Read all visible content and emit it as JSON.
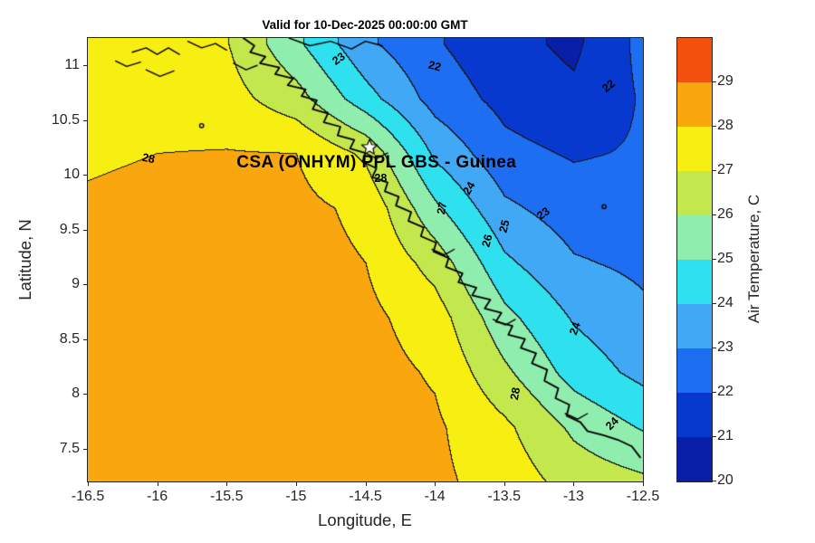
{
  "title": "Valid for 10-Dec-2025 00:00:00 GMT",
  "annotation": {
    "text": "CSA (ONHYM) PPL GBS  - Guinea",
    "lon": -14.42,
    "lat": 10.11
  },
  "axes": {
    "xlabel": "Longitude, E",
    "ylabel": "Latitude, N",
    "xlim": [
      -16.5,
      -12.5
    ],
    "ylim": [
      7.2,
      11.25
    ],
    "x_ticks": [
      -16.5,
      -16,
      -15.5,
      -15,
      -14.5,
      -14,
      -13.5,
      -13,
      -12.5
    ],
    "y_ticks": [
      7.5,
      8,
      8.5,
      9,
      9.5,
      10,
      10.5,
      11
    ]
  },
  "colorbar": {
    "label": "Air Temperature, C",
    "range": [
      20,
      30
    ],
    "ticks": [
      20,
      21,
      22,
      23,
      24,
      25,
      26,
      27,
      28,
      29
    ],
    "band_colors": [
      "#0a1fa8",
      "#0839cf",
      "#1e6ef2",
      "#41a8f5",
      "#2fe0ef",
      "#8fedae",
      "#c3e84e",
      "#f8ef12",
      "#f9a60f",
      "#f3500e"
    ]
  },
  "chart_data": {
    "type": "heatmap",
    "style": "filled-contour",
    "variable": "Air Temperature, C",
    "units": "degC",
    "contour_interval": 1,
    "grid": {
      "lon": [
        -16.5,
        -16,
        -15.5,
        -15,
        -14.5,
        -14,
        -13.5,
        -13,
        -12.5
      ],
      "lat": [
        7.2,
        7.7,
        8.2,
        8.7,
        9.2,
        9.7,
        10.2,
        10.7,
        11.2
      ],
      "values": [
        [
          28.3,
          28.35,
          28.4,
          28.45,
          28.4,
          28.2,
          27.6,
          26.6,
          26.2
        ],
        [
          28.3,
          28.35,
          28.4,
          28.45,
          28.4,
          28.15,
          27.2,
          25.8,
          24.9
        ],
        [
          28.3,
          28.35,
          28.4,
          28.4,
          28.35,
          27.9,
          26.2,
          24.6,
          23.7
        ],
        [
          28.25,
          28.3,
          28.35,
          28.35,
          28.25,
          27.5,
          25.3,
          23.9,
          23.2
        ],
        [
          28.2,
          28.25,
          28.3,
          28.3,
          28.0,
          26.6,
          24.2,
          23.1,
          22.8
        ],
        [
          28.1,
          28.2,
          28.3,
          28.25,
          27.8,
          25.2,
          23.2,
          22.5,
          22.5
        ],
        [
          27.9,
          28.0,
          28.05,
          28.0,
          26.8,
          23.8,
          22.3,
          21.9,
          22.1
        ],
        [
          27.6,
          27.55,
          27.4,
          26.4,
          24.4,
          22.6,
          21.7,
          21.2,
          22.1
        ],
        [
          27.35,
          27.25,
          27.05,
          25.2,
          23.2,
          22.1,
          21.3,
          20.8,
          22.3
        ]
      ]
    },
    "contour_labels": [
      {
        "text": "23",
        "lon": -14.69,
        "lat": 11.06,
        "rot": -35
      },
      {
        "text": "22",
        "lon": -14.0,
        "lat": 10.99,
        "rot": 15
      },
      {
        "text": "22",
        "lon": -12.75,
        "lat": 10.81,
        "rot": -40
      },
      {
        "text": "28",
        "lon": -16.06,
        "lat": 10.15,
        "rot": 12
      },
      {
        "text": "28",
        "lon": -14.39,
        "lat": 9.97,
        "rot": 0
      },
      {
        "text": "27",
        "lon": -13.95,
        "lat": 9.7,
        "rot": -80
      },
      {
        "text": "24",
        "lon": -13.75,
        "lat": 9.88,
        "rot": -60
      },
      {
        "text": "26",
        "lon": -13.62,
        "lat": 9.4,
        "rot": -75
      },
      {
        "text": "25",
        "lon": -13.5,
        "lat": 9.53,
        "rot": -75
      },
      {
        "text": "23",
        "lon": -13.22,
        "lat": 9.65,
        "rot": -35
      },
      {
        "text": "24",
        "lon": -12.99,
        "lat": 8.6,
        "rot": -70
      },
      {
        "text": "28",
        "lon": -13.42,
        "lat": 8.0,
        "rot": -80
      },
      {
        "text": "24",
        "lon": -12.72,
        "lat": 7.73,
        "rot": -45
      }
    ],
    "star": {
      "lon": -14.47,
      "lat": 10.25
    },
    "coastline": [
      [
        -15.38,
        11.25
      ],
      [
        -15.3,
        11.18
      ],
      [
        -15.33,
        11.12
      ],
      [
        -15.22,
        11.08
      ],
      [
        -15.26,
        11.02
      ],
      [
        -15.12,
        10.98
      ],
      [
        -15.15,
        10.92
      ],
      [
        -15.02,
        10.88
      ],
      [
        -15.06,
        10.82
      ],
      [
        -14.93,
        10.78
      ],
      [
        -14.96,
        10.72
      ],
      [
        -14.85,
        10.68
      ],
      [
        -14.88,
        10.6
      ],
      [
        -14.77,
        10.56
      ],
      [
        -14.8,
        10.48
      ],
      [
        -14.68,
        10.44
      ],
      [
        -14.7,
        10.36
      ],
      [
        -14.58,
        10.32
      ],
      [
        -14.61,
        10.24
      ],
      [
        -14.5,
        10.2
      ],
      [
        -14.52,
        10.12
      ],
      [
        -14.42,
        10.06
      ],
      [
        -14.45,
        9.98
      ],
      [
        -14.34,
        9.93
      ],
      [
        -14.36,
        9.85
      ],
      [
        -14.26,
        9.8
      ],
      [
        -14.28,
        9.72
      ],
      [
        -14.17,
        9.66
      ],
      [
        -14.19,
        9.58
      ],
      [
        -14.08,
        9.52
      ],
      [
        -14.1,
        9.44
      ],
      [
        -13.99,
        9.38
      ],
      [
        -14.01,
        9.3
      ],
      [
        -13.9,
        9.24
      ],
      [
        -13.92,
        9.16
      ],
      [
        -13.8,
        9.1
      ],
      [
        -13.83,
        9.02
      ],
      [
        -13.7,
        8.97
      ],
      [
        -13.73,
        8.9
      ],
      [
        -13.6,
        8.86
      ],
      [
        -13.64,
        8.78
      ],
      [
        -13.52,
        8.74
      ],
      [
        -13.56,
        8.66
      ],
      [
        -13.44,
        8.62
      ],
      [
        -13.47,
        8.54
      ],
      [
        -13.35,
        8.5
      ],
      [
        -13.38,
        8.42
      ],
      [
        -13.27,
        8.37
      ],
      [
        -13.3,
        8.28
      ],
      [
        -13.19,
        8.22
      ],
      [
        -13.21,
        8.12
      ],
      [
        -13.11,
        8.05
      ],
      [
        -13.13,
        7.96
      ],
      [
        -13.03,
        7.9
      ],
      [
        -13.05,
        7.8
      ],
      [
        -12.95,
        7.74
      ],
      [
        -12.9,
        7.66
      ],
      [
        -12.78,
        7.62
      ],
      [
        -12.68,
        7.58
      ],
      [
        -12.58,
        7.52
      ],
      [
        -12.52,
        7.42
      ]
    ],
    "coast_details": [
      [
        [
          -16.18,
          11.12
        ],
        [
          -16.08,
          11.16
        ],
        [
          -16.0,
          11.1
        ],
        [
          -15.92,
          11.16
        ],
        [
          -15.84,
          11.1
        ]
      ],
      [
        [
          -15.78,
          11.22
        ],
        [
          -15.68,
          11.16
        ],
        [
          -15.58,
          11.2
        ],
        [
          -15.5,
          11.14
        ]
      ],
      [
        [
          -16.3,
          11.04
        ],
        [
          -16.22,
          10.99
        ],
        [
          -16.12,
          11.03
        ]
      ],
      [
        [
          -16.08,
          10.96
        ],
        [
          -15.98,
          10.9
        ],
        [
          -15.88,
          10.95
        ]
      ],
      [
        [
          -15.45,
          11.02
        ],
        [
          -15.36,
          10.96
        ],
        [
          -15.28,
          11.0
        ]
      ],
      [
        [
          -15.05,
          11.25
        ],
        [
          -14.9,
          11.18
        ],
        [
          -14.75,
          11.22
        ],
        [
          -14.6,
          11.15
        ],
        [
          -14.5,
          11.22
        ],
        [
          -14.38,
          11.18
        ]
      ],
      [
        [
          -14.5,
          10.2
        ],
        [
          -14.42,
          10.15
        ],
        [
          -14.34,
          10.2
        ]
      ],
      [
        [
          -14.02,
          9.32
        ],
        [
          -13.93,
          9.27
        ],
        [
          -13.86,
          9.32
        ]
      ],
      [
        [
          -13.58,
          8.68
        ],
        [
          -13.49,
          8.63
        ],
        [
          -13.42,
          8.68
        ]
      ],
      [
        [
          -13.06,
          7.82
        ],
        [
          -12.97,
          7.77
        ],
        [
          -12.9,
          7.82
        ]
      ]
    ],
    "markers_circle": [
      [
        -15.68,
        10.45
      ],
      [
        -12.78,
        9.71
      ]
    ]
  }
}
